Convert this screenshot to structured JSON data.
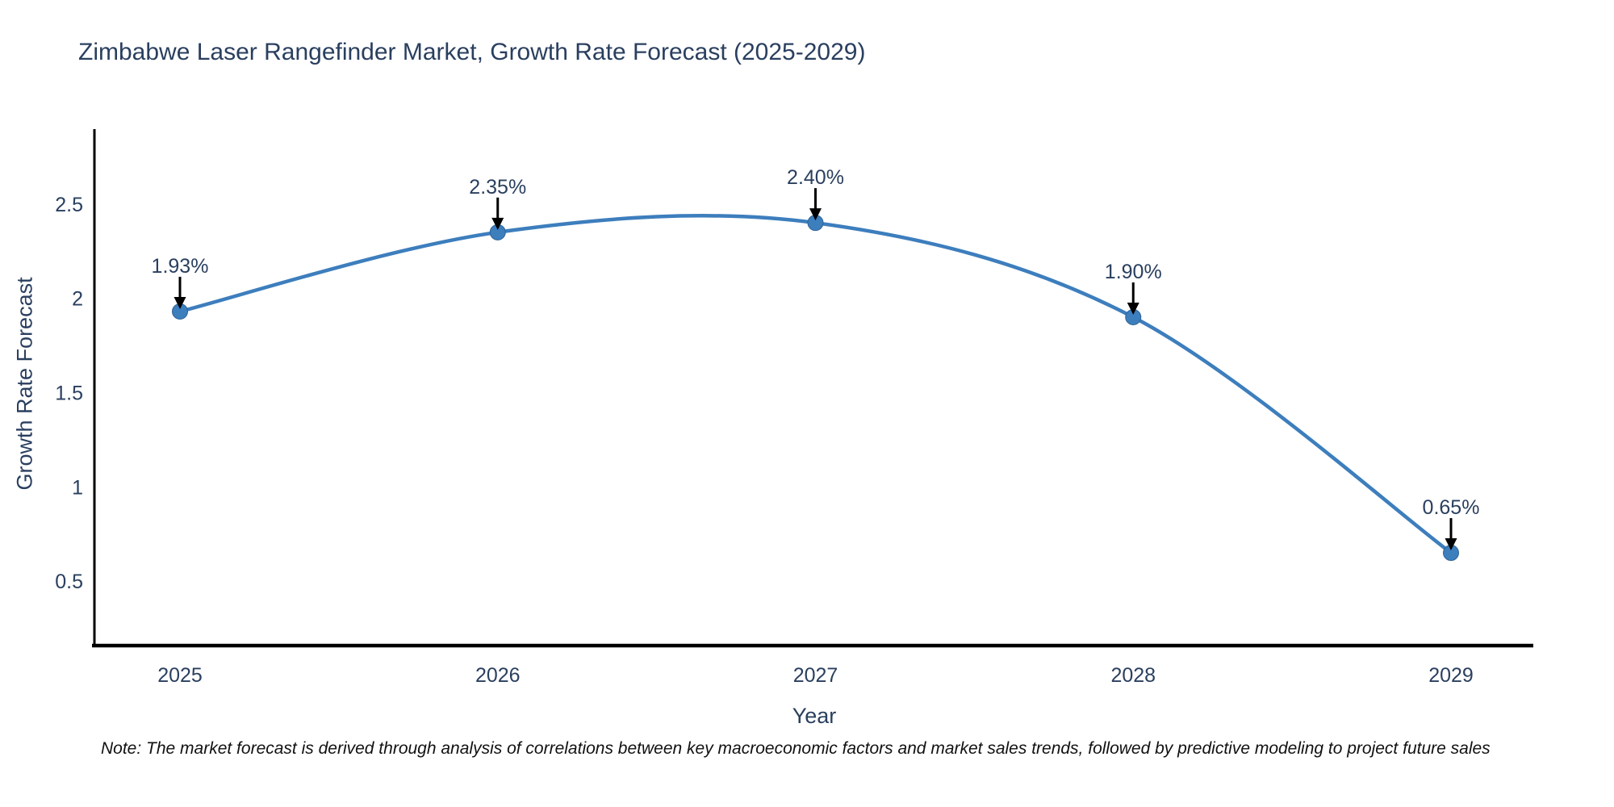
{
  "title": "Zimbabwe Laser Rangefinder Market, Growth Rate Forecast (2025-2029)",
  "note": "Note: The market forecast is derived through analysis of correlations between key macroeconomic factors and market sales trends, followed by predictive modeling to project future sales",
  "colors": {
    "title_text": "#2a3f5f",
    "tick_text": "#2a3f5f",
    "annotation_text": "#2a3f5f",
    "line": "#3d7ebd",
    "marker": "#3d7ebd",
    "marker_edge": "#2f6396",
    "axis_line": "#000000",
    "arrow": "#000000",
    "note_text": "#111111",
    "background": "#ffffff"
  },
  "chart_data": {
    "type": "line",
    "title": "Zimbabwe Laser Rangefinder Market, Growth Rate Forecast (2025-2029)",
    "xlabel": "Year",
    "ylabel": "Growth Rate Forecast",
    "x": [
      2025,
      2026,
      2027,
      2028,
      2029
    ],
    "values": [
      1.93,
      2.35,
      2.4,
      1.9,
      0.65
    ],
    "point_labels": [
      "1.93%",
      "2.35%",
      "2.40%",
      "1.90%",
      "0.65%"
    ],
    "xticks": [
      "2025",
      "2026",
      "2027",
      "2028",
      "2029"
    ],
    "yticks": [
      0.5,
      1,
      1.5,
      2,
      2.5
    ],
    "ylim": [
      0.158,
      2.897
    ],
    "line_shape": "spline",
    "grid": false,
    "legend": false,
    "annotations_have_arrows": true
  }
}
